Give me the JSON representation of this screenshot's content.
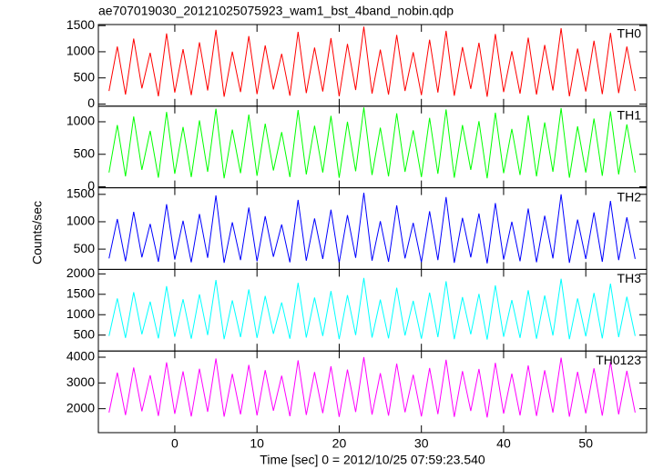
{
  "title": "ae707019030_20121025075923_wam1_bst_4band_nobin.qdp",
  "x_label": "Time [sec] 0 = 2012/10/25 07:59:23.540",
  "y_label": "Counts/sec",
  "chart_data": [
    {
      "type": "line",
      "label": "TH0",
      "color": "#ff0000",
      "x": [
        -8,
        -7,
        -6,
        -5,
        -4,
        -3,
        -2,
        -1,
        0,
        1,
        2,
        3,
        4,
        5,
        6,
        7,
        8,
        9,
        10,
        11,
        12,
        13,
        14,
        15,
        16,
        17,
        18,
        19,
        20,
        21,
        22,
        23,
        24,
        25,
        26,
        27,
        28,
        29,
        30,
        31,
        32,
        33,
        34,
        35,
        36,
        37,
        38,
        39,
        40,
        41,
        42,
        43,
        44,
        45,
        46,
        47,
        48,
        49,
        50,
        51,
        52,
        53,
        54,
        55,
        56
      ],
      "values": [
        250,
        1100,
        180,
        1250,
        300,
        980,
        150,
        1350,
        220,
        1050,
        170,
        1180,
        260,
        1420,
        140,
        1000,
        230,
        1300,
        190,
        1120,
        280,
        960,
        160,
        1380,
        210,
        1080,
        240,
        1260,
        150,
        1150,
        270,
        1480,
        200,
        1040,
        180,
        1320,
        250,
        990,
        170,
        1230,
        220,
        1400,
        160,
        1090,
        290,
        1170,
        140,
        1340,
        230,
        1010,
        200,
        1270,
        180,
        1130,
        260,
        1450,
        150,
        1060,
        240,
        1210,
        190,
        1360,
        210,
        1100,
        250
      ],
      "xlim": [
        -9.3,
        57.4
      ],
      "xticks": [
        0,
        10,
        20,
        30,
        40,
        50
      ],
      "ylim": [
        -40,
        1520
      ],
      "yticks": [
        0,
        500,
        1000,
        1500
      ]
    },
    {
      "type": "line",
      "label": "TH1",
      "color": "#00ff00",
      "x": [
        -8,
        -7,
        -6,
        -5,
        -4,
        -3,
        -2,
        -1,
        0,
        1,
        2,
        3,
        4,
        5,
        6,
        7,
        8,
        9,
        10,
        11,
        12,
        13,
        14,
        15,
        16,
        17,
        18,
        19,
        20,
        21,
        22,
        23,
        24,
        25,
        26,
        27,
        28,
        29,
        30,
        31,
        32,
        33,
        34,
        35,
        36,
        37,
        38,
        39,
        40,
        41,
        42,
        43,
        44,
        45,
        46,
        47,
        48,
        49,
        50,
        51,
        52,
        53,
        54,
        55,
        56
      ],
      "values": [
        220,
        950,
        160,
        1080,
        260,
        860,
        140,
        1150,
        200,
        920,
        150,
        1020,
        230,
        1200,
        130,
        880,
        210,
        1110,
        170,
        970,
        250,
        840,
        150,
        1180,
        190,
        940,
        220,
        1090,
        140,
        1000,
        240,
        1220,
        180,
        910,
        160,
        1130,
        230,
        870,
        150,
        1060,
        200,
        1190,
        140,
        950,
        260,
        1010,
        130,
        1140,
        210,
        890,
        180,
        1100,
        160,
        990,
        230,
        1210,
        140,
        930,
        220,
        1050,
        170,
        1160,
        190,
        960,
        220
      ],
      "xlim": [
        -9.3,
        57.4
      ],
      "xticks": [
        0,
        10,
        20,
        30,
        40,
        50
      ],
      "ylim": [
        -15,
        1240
      ],
      "yticks": [
        0,
        500,
        1000
      ]
    },
    {
      "type": "line",
      "label": "TH2",
      "color": "#0000ff",
      "x": [
        -8,
        -7,
        -6,
        -5,
        -4,
        -3,
        -2,
        -1,
        0,
        1,
        2,
        3,
        4,
        5,
        6,
        7,
        8,
        9,
        10,
        11,
        12,
        13,
        14,
        15,
        16,
        17,
        18,
        19,
        20,
        21,
        22,
        23,
        24,
        25,
        26,
        27,
        28,
        29,
        30,
        31,
        32,
        33,
        34,
        35,
        36,
        37,
        38,
        39,
        40,
        41,
        42,
        43,
        44,
        45,
        46,
        47,
        48,
        49,
        50,
        51,
        52,
        53,
        54,
        55,
        56
      ],
      "values": [
        330,
        1050,
        280,
        1180,
        350,
        960,
        270,
        1320,
        310,
        1020,
        260,
        1140,
        340,
        1480,
        250,
        990,
        300,
        1260,
        280,
        1100,
        360,
        950,
        260,
        1400,
        290,
        1060,
        320,
        1220,
        250,
        1120,
        340,
        1530,
        290,
        1010,
        270,
        1300,
        330,
        980,
        260,
        1190,
        300,
        1450,
        250,
        1070,
        350,
        1150,
        240,
        1340,
        310,
        1000,
        280,
        1240,
        260,
        1110,
        330,
        1500,
        250,
        1040,
        320,
        1170,
        270,
        1380,
        300,
        1080,
        320
      ],
      "xlim": [
        -9.3,
        57.4
      ],
      "xticks": [
        0,
        10,
        20,
        30,
        40,
        50
      ],
      "ylim": [
        130,
        1620
      ],
      "yticks": [
        500,
        1000,
        1500
      ]
    },
    {
      "type": "line",
      "label": "TH3",
      "color": "#00ffff",
      "x": [
        -8,
        -7,
        -6,
        -5,
        -4,
        -3,
        -2,
        -1,
        0,
        1,
        2,
        3,
        4,
        5,
        6,
        7,
        8,
        9,
        10,
        11,
        12,
        13,
        14,
        15,
        16,
        17,
        18,
        19,
        20,
        21,
        22,
        23,
        24,
        25,
        26,
        27,
        28,
        29,
        30,
        31,
        32,
        33,
        34,
        35,
        36,
        37,
        38,
        39,
        40,
        41,
        42,
        43,
        44,
        45,
        46,
        47,
        48,
        49,
        50,
        51,
        52,
        53,
        54,
        55,
        56
      ],
      "values": [
        480,
        1400,
        430,
        1550,
        520,
        1320,
        420,
        1700,
        460,
        1380,
        410,
        1500,
        500,
        1850,
        400,
        1350,
        450,
        1620,
        430,
        1460,
        530,
        1300,
        410,
        1780,
        440,
        1420,
        480,
        1580,
        400,
        1480,
        500,
        1900,
        440,
        1370,
        420,
        1660,
        490,
        1340,
        410,
        1540,
        450,
        1820,
        400,
        1430,
        520,
        1510,
        390,
        1720,
        460,
        1360,
        430,
        1600,
        410,
        1470,
        490,
        1880,
        400,
        1400,
        470,
        1530,
        420,
        1760,
        450,
        1440,
        480
      ],
      "xlim": [
        -9.3,
        57.4
      ],
      "xticks": [
        0,
        10,
        20,
        30,
        40,
        50
      ],
      "ylim": [
        110,
        2110
      ],
      "yticks": [
        500,
        1000,
        1500,
        2000
      ]
    },
    {
      "type": "line",
      "label": "TH0123",
      "color": "#ff00ff",
      "x": [
        -8,
        -7,
        -6,
        -5,
        -4,
        -3,
        -2,
        -1,
        0,
        1,
        2,
        3,
        4,
        5,
        6,
        7,
        8,
        9,
        10,
        11,
        12,
        13,
        14,
        15,
        16,
        17,
        18,
        19,
        20,
        21,
        22,
        23,
        24,
        25,
        26,
        27,
        28,
        29,
        30,
        31,
        32,
        33,
        34,
        35,
        36,
        37,
        38,
        39,
        40,
        41,
        42,
        43,
        44,
        45,
        46,
        47,
        48,
        49,
        50,
        51,
        52,
        53,
        54,
        55,
        56
      ],
      "values": [
        1850,
        3400,
        1750,
        3600,
        1900,
        3300,
        1720,
        3800,
        1800,
        3450,
        1700,
        3550,
        1880,
        3950,
        1690,
        3350,
        1780,
        3700,
        1740,
        3500,
        1920,
        3280,
        1710,
        3880,
        1760,
        3420,
        1830,
        3650,
        1680,
        3520,
        1870,
        4000,
        1770,
        3380,
        1730,
        3750,
        1860,
        3320,
        1700,
        3580,
        1790,
        3900,
        1680,
        3460,
        1910,
        3540,
        1660,
        3780,
        1810,
        3360,
        1740,
        3680,
        1720,
        3490,
        1850,
        3980,
        1690,
        3430,
        1820,
        3570,
        1730,
        3820,
        1780,
        3470,
        1850
      ],
      "xlim": [
        -9.3,
        57.4
      ],
      "xticks": [
        0,
        10,
        20,
        30,
        40,
        50
      ],
      "ylim": [
        1070,
        4240
      ],
      "yticks": [
        2000,
        3000,
        4000
      ]
    }
  ]
}
